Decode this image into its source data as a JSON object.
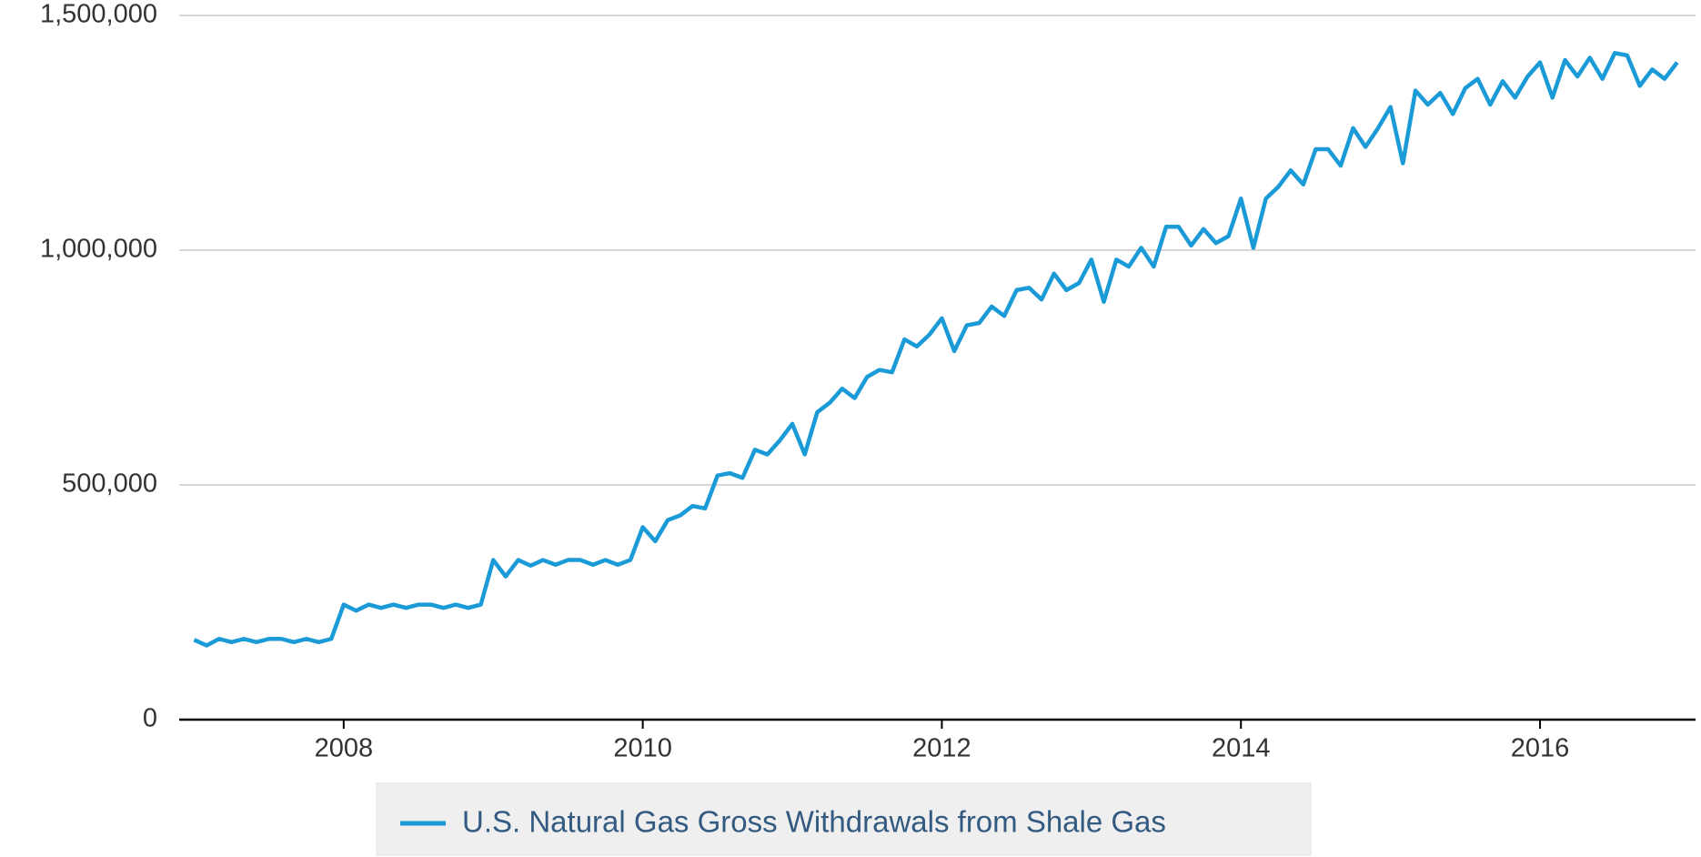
{
  "chart_data": {
    "type": "line",
    "x": [
      2007,
      2007.083,
      2007.167,
      2007.25,
      2007.333,
      2007.417,
      2007.5,
      2007.583,
      2007.667,
      2007.75,
      2007.833,
      2007.917,
      2008,
      2008.083,
      2008.167,
      2008.25,
      2008.333,
      2008.417,
      2008.5,
      2008.583,
      2008.667,
      2008.75,
      2008.833,
      2008.917,
      2009,
      2009.083,
      2009.167,
      2009.25,
      2009.333,
      2009.417,
      2009.5,
      2009.583,
      2009.667,
      2009.75,
      2009.833,
      2009.917,
      2010,
      2010.083,
      2010.167,
      2010.25,
      2010.333,
      2010.417,
      2010.5,
      2010.583,
      2010.667,
      2010.75,
      2010.833,
      2010.917,
      2011,
      2011.083,
      2011.167,
      2011.25,
      2011.333,
      2011.417,
      2011.5,
      2011.583,
      2011.667,
      2011.75,
      2011.833,
      2011.917,
      2012,
      2012.083,
      2012.167,
      2012.25,
      2012.333,
      2012.417,
      2012.5,
      2012.583,
      2012.667,
      2012.75,
      2012.833,
      2012.917,
      2013,
      2013.083,
      2013.167,
      2013.25,
      2013.333,
      2013.417,
      2013.5,
      2013.583,
      2013.667,
      2013.75,
      2013.833,
      2013.917,
      2014,
      2014.083,
      2014.167,
      2014.25,
      2014.333,
      2014.417,
      2014.5,
      2014.583,
      2014.667,
      2014.75,
      2014.833,
      2014.917,
      2015,
      2015.083,
      2015.167,
      2015.25,
      2015.333,
      2015.417,
      2015.5,
      2015.583,
      2015.667,
      2015.75,
      2015.833,
      2015.917,
      2016,
      2016.083,
      2016.167,
      2016.25,
      2016.333,
      2016.417,
      2016.5,
      2016.583,
      2016.667,
      2016.75,
      2016.833,
      2016.917
    ],
    "series": [
      {
        "name": "U.S. Natural Gas Gross Withdrawals from Shale Gas",
        "color": "#1a9ad6",
        "values": [
          170000,
          158000,
          172000,
          165000,
          172000,
          165000,
          172000,
          172000,
          165000,
          172000,
          165000,
          172000,
          245000,
          232000,
          245000,
          238000,
          245000,
          238000,
          245000,
          245000,
          238000,
          245000,
          238000,
          245000,
          340000,
          305000,
          340000,
          328000,
          340000,
          330000,
          340000,
          340000,
          330000,
          340000,
          330000,
          340000,
          410000,
          380000,
          425000,
          435000,
          455000,
          450000,
          520000,
          525000,
          515000,
          575000,
          565000,
          595000,
          630000,
          565000,
          655000,
          675000,
          705000,
          685000,
          730000,
          745000,
          740000,
          810000,
          795000,
          820000,
          855000,
          785000,
          840000,
          845000,
          880000,
          860000,
          915000,
          920000,
          895000,
          950000,
          915000,
          930000,
          980000,
          890000,
          980000,
          965000,
          1005000,
          965000,
          1050000,
          1050000,
          1010000,
          1045000,
          1015000,
          1030000,
          1110000,
          1005000,
          1110000,
          1135000,
          1170000,
          1140000,
          1215000,
          1215000,
          1180000,
          1260000,
          1220000,
          1260000,
          1305000,
          1185000,
          1340000,
          1310000,
          1335000,
          1290000,
          1345000,
          1365000,
          1310000,
          1360000,
          1325000,
          1370000,
          1400000,
          1325000,
          1405000,
          1370000,
          1410000,
          1365000,
          1420000,
          1415000,
          1350000,
          1385000,
          1365000,
          1400000
        ]
      }
    ],
    "xlim": [
      2006.9,
      2017.04
    ],
    "xticks": [
      2008,
      2010,
      2012,
      2014,
      2016
    ],
    "ylim": [
      0,
      1500000
    ],
    "yticks": [
      0,
      {
        "value": 500000,
        "label": "500,000"
      },
      {
        "value": 1000000,
        "label": "1,000,000"
      },
      {
        "value": 1500000,
        "label": "1,500,000"
      }
    ],
    "grid": true
  }
}
